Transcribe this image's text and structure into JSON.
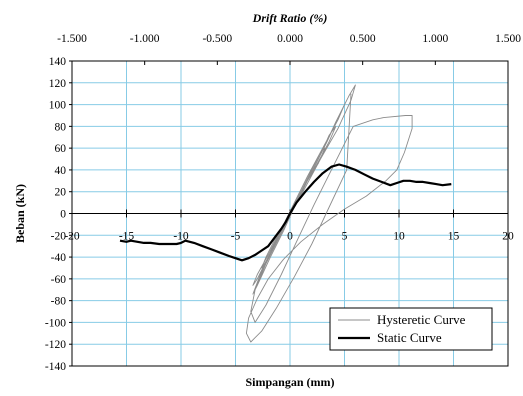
{
  "chart_data": {
    "type": "line",
    "title": "Drift Ratio (%)",
    "xlabel": "Simpangan (mm)",
    "ylabel": "Beban (kN)",
    "xlim": [
      -20,
      20
    ],
    "ylim": [
      -140,
      140
    ],
    "grid": true,
    "legend_position": "bottom-right",
    "x_ticks": [
      -20,
      -15,
      -10,
      -5,
      0,
      5,
      10,
      15,
      20
    ],
    "x_tick_labels": [
      "-20",
      "-15",
      "-10",
      "-5",
      "0",
      "5",
      "10",
      "15",
      "20"
    ],
    "y_ticks": [
      -140,
      -120,
      -100,
      -80,
      -60,
      -40,
      -20,
      0,
      20,
      40,
      60,
      80,
      100,
      120,
      140
    ],
    "y_tick_labels": [
      "-140",
      "-120",
      "-100",
      "-80",
      "-60",
      "-40",
      "-20",
      "0",
      "20",
      "40",
      "60",
      "80",
      "100",
      "120",
      "140"
    ],
    "top_axis": {
      "label": "Drift Ratio (%)",
      "ticks": [
        -1.5,
        -1.0,
        -0.5,
        0.0,
        0.5,
        1.0,
        1.5
      ],
      "tick_labels": [
        "-1.500",
        "-1.000",
        "-0.500",
        "0.000",
        "0.500",
        "1.000",
        "1.500"
      ]
    },
    "series": [
      {
        "name": "Hysteretic Curve",
        "color": "#8c8c8c",
        "style": "thin",
        "x": [
          0,
          0.5,
          1.2,
          2.0,
          2.8,
          3.2,
          2.6,
          1.6,
          0.8,
          0.2,
          -0.4,
          -1.0,
          -1.6,
          -2.2,
          -2.6,
          -2.2,
          -1.4,
          -0.6,
          0,
          0.8,
          1.8,
          2.8,
          3.6,
          4.2,
          3.6,
          2.4,
          1.2,
          0.3,
          -0.6,
          -1.6,
          -2.4,
          -3.0,
          -3.4,
          -3.0,
          -2.0,
          -1.0,
          0,
          1.0,
          2.2,
          3.4,
          4.4,
          5.0,
          4.4,
          3.0,
          1.6,
          0.4,
          -0.8,
          -1.8,
          -2.8,
          -3.4,
          -3.0,
          -1.8,
          -0.6,
          0.4,
          1.6,
          3.0,
          4.2,
          5.4,
          6.0,
          5.6,
          4.4,
          2.8,
          1.4,
          0.2,
          -1.0,
          -2.2,
          -3.2,
          -3.6,
          -3.2,
          -2.2,
          -0.8,
          0.6,
          2.2,
          4.0,
          5.8,
          7.6,
          8.6,
          10.6,
          11.2,
          11.2,
          10.5,
          9.8,
          8.8,
          7.0,
          5.0,
          3.0,
          1.0,
          -0.6,
          -2.0,
          -3.0,
          -3.8,
          -4.0,
          -3.6,
          -2.6,
          -1.2,
          0.4,
          2.0,
          3.6,
          5.2,
          5.6
        ],
        "y": [
          0,
          10,
          24,
          40,
          56,
          60,
          46,
          30,
          16,
          4,
          -8,
          -20,
          -32,
          -44,
          -50,
          -40,
          -24,
          -10,
          0,
          16,
          34,
          54,
          72,
          80,
          66,
          44,
          24,
          6,
          -12,
          -32,
          -48,
          -60,
          -66,
          -56,
          -38,
          -18,
          0,
          20,
          42,
          66,
          88,
          100,
          86,
          60,
          34,
          10,
          -14,
          -36,
          -58,
          -74,
          -66,
          -40,
          -16,
          6,
          30,
          58,
          84,
          108,
          118,
          104,
          78,
          50,
          24,
          2,
          -22,
          -46,
          -70,
          -90,
          -100,
          -84,
          -56,
          -26,
          8,
          44,
          80,
          86,
          88,
          90,
          90,
          78,
          56,
          40,
          30,
          16,
          4,
          -10,
          -26,
          -42,
          -60,
          -78,
          -96,
          -110,
          -118,
          -108,
          -86,
          -58,
          -28,
          6,
          40,
          110
        ]
      },
      {
        "name": "Static Curve",
        "color": "#000000",
        "style": "thick",
        "x": [
          -15.6,
          -15.0,
          -14.6,
          -14.0,
          -13.4,
          -12.8,
          -12.0,
          -11.2,
          -10.4,
          -10.0,
          -9.6,
          -8.8,
          -8.0,
          -7.2,
          -6.4,
          -5.6,
          -5.0,
          -4.4,
          -3.8,
          -3.2,
          -2.6,
          -2.0,
          -1.4,
          -0.8,
          -0.4,
          0,
          0.6,
          1.4,
          2.2,
          3.0,
          3.8,
          4.5,
          5.2,
          6.0,
          6.8,
          7.6,
          8.4,
          9.2,
          9.8,
          10.4,
          11.0,
          11.6,
          12.2,
          12.8,
          13.4,
          14.0,
          14.8
        ],
        "y": [
          -25,
          -26,
          -25,
          -26,
          -27,
          -27,
          -28,
          -28,
          -28,
          -27,
          -25,
          -27,
          -30,
          -33,
          -36,
          -39,
          -41,
          -43,
          -41,
          -38,
          -34,
          -30,
          -22,
          -14,
          -8,
          0,
          10,
          20,
          29,
          37,
          43,
          45,
          43,
          40,
          36,
          32,
          29,
          26,
          28,
          30,
          30,
          29,
          29,
          28,
          27,
          26,
          27
        ]
      }
    ]
  }
}
